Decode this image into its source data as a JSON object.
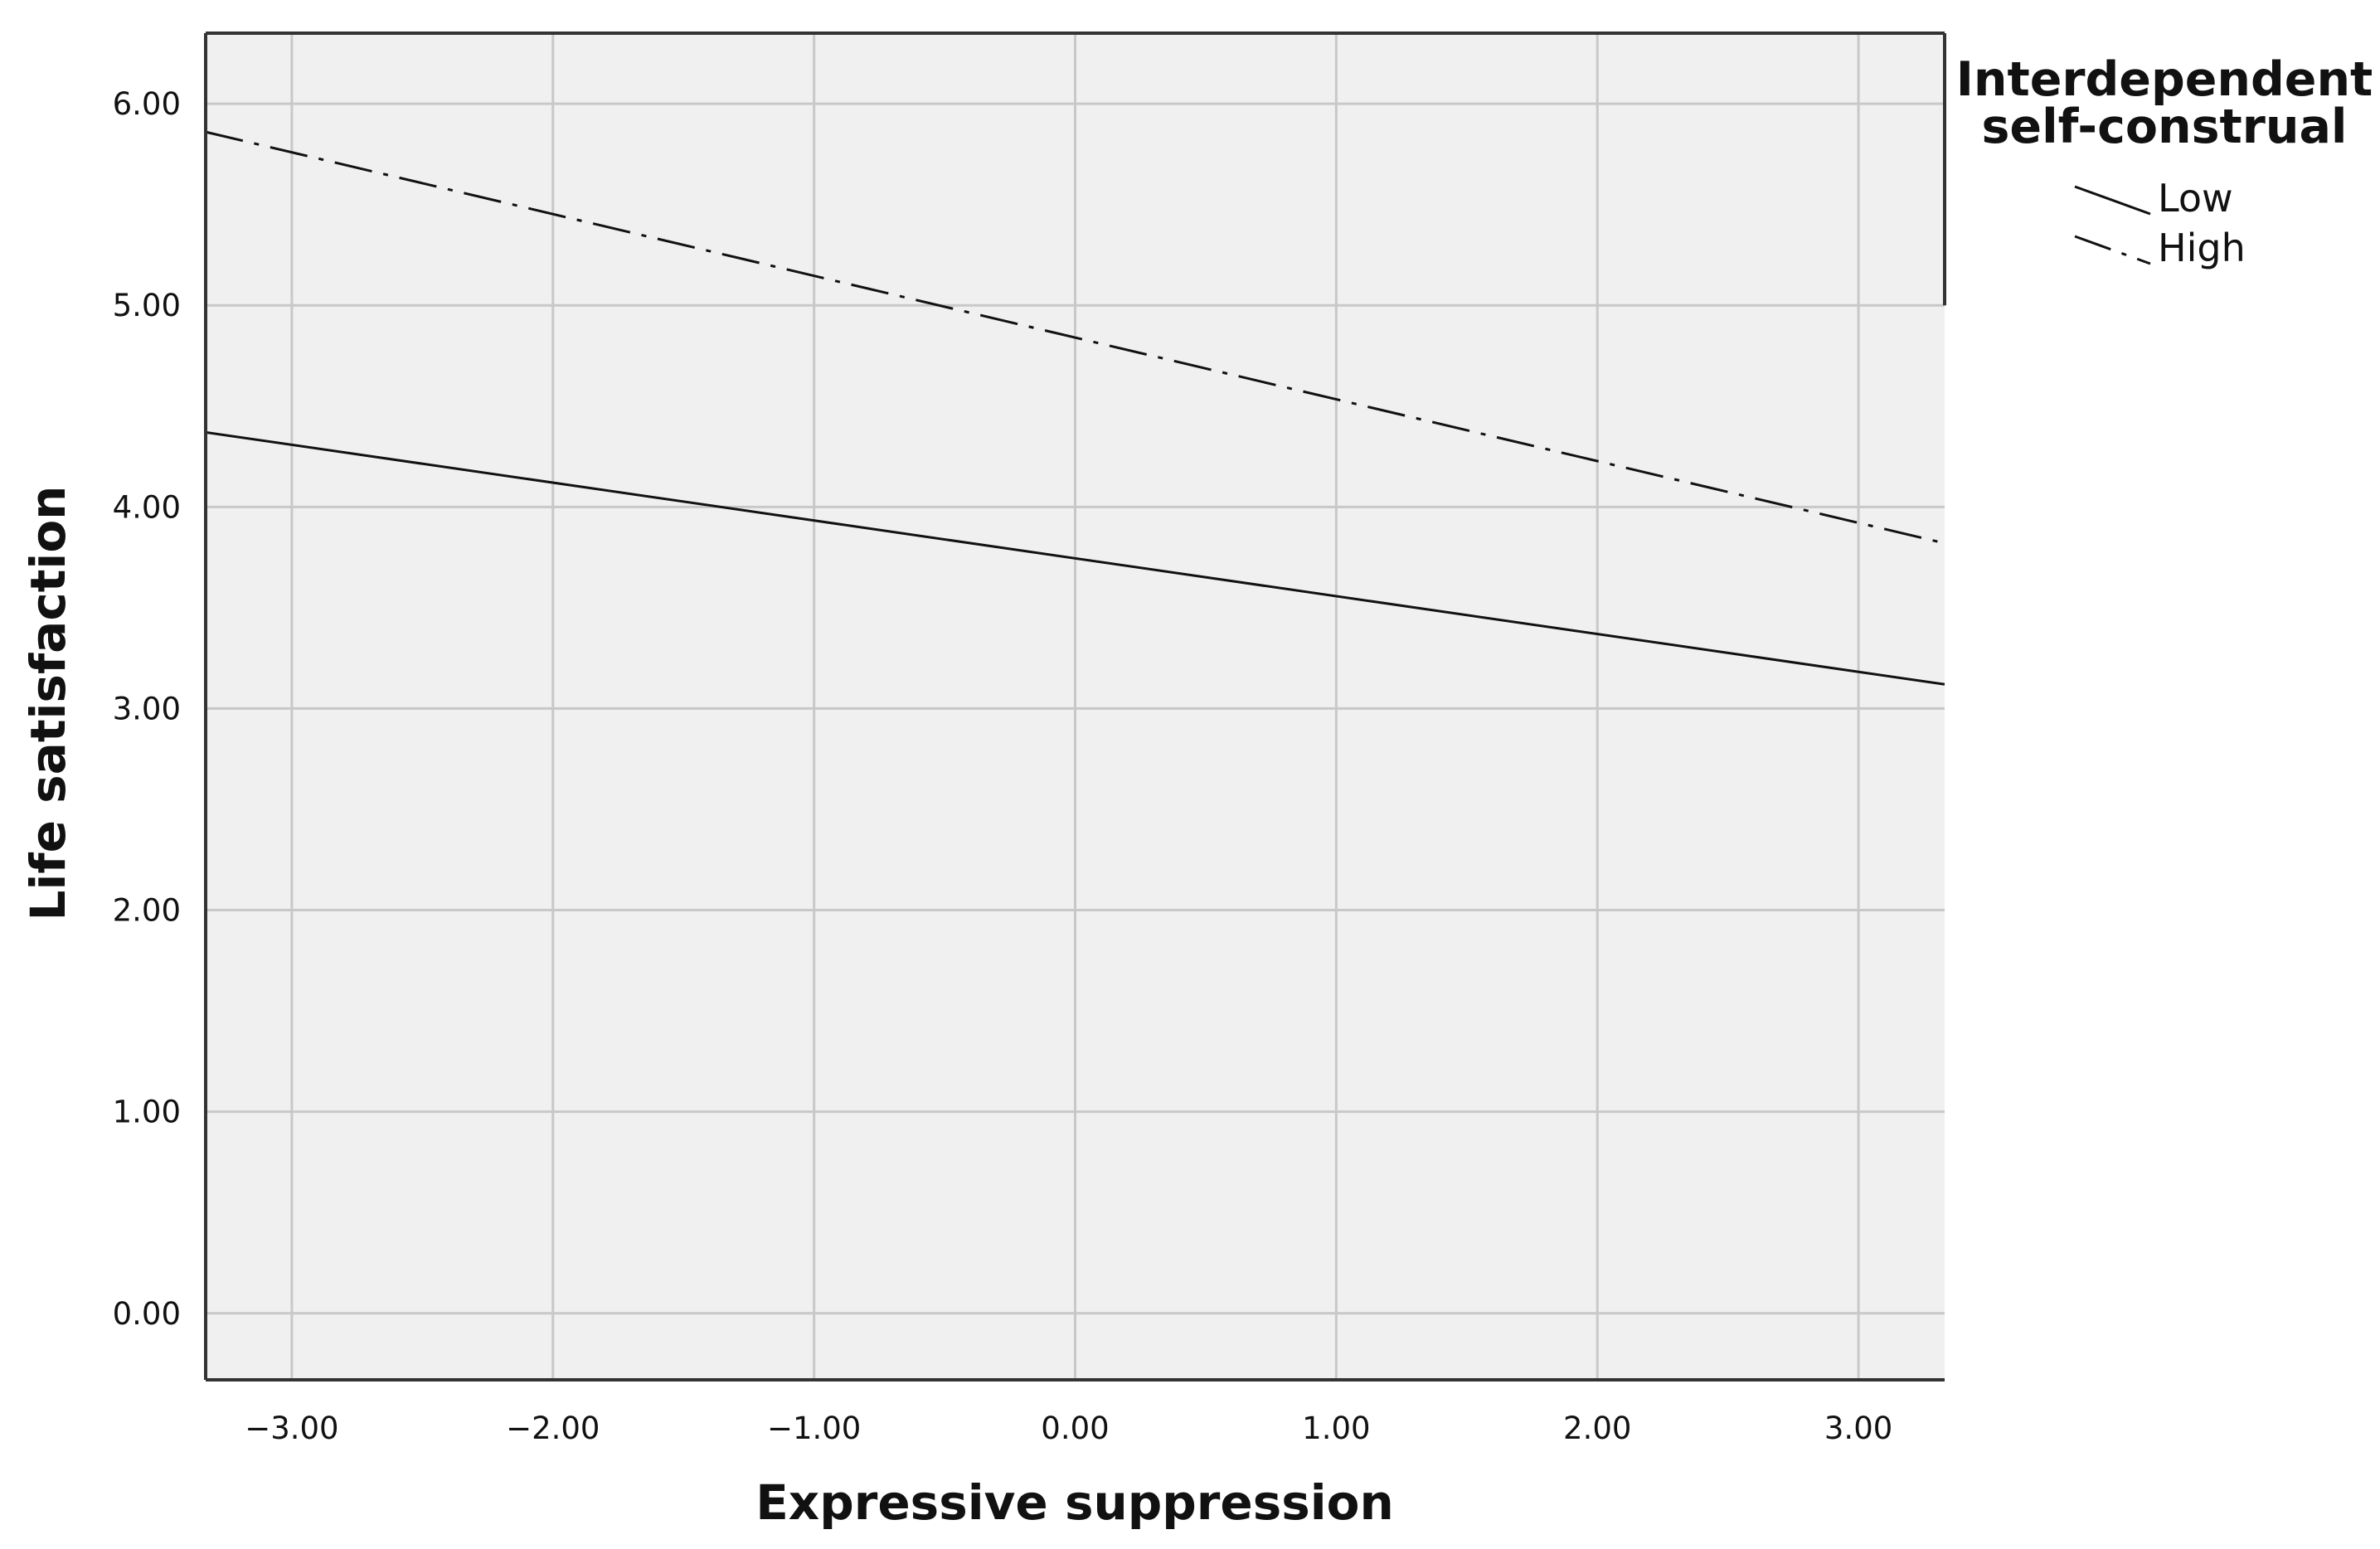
{
  "chart_data": {
    "type": "line",
    "xlabel": "Expressive suppression",
    "ylabel": "Life satisfaction",
    "xlim": [
      -3.33,
      3.33
    ],
    "ylim": [
      -0.33,
      6.35
    ],
    "xticks": [
      -3,
      -2,
      -1,
      0,
      1,
      2,
      3
    ],
    "yticks": [
      0,
      1,
      2,
      3,
      4,
      5,
      6
    ],
    "xtick_labels": [
      "−3.00",
      "−2.00",
      "−1.00",
      "0.00",
      "1.00",
      "2.00",
      "3.00"
    ],
    "ytick_labels": [
      "0.00",
      "1.00",
      "2.00",
      "3.00",
      "4.00",
      "5.00",
      "6.00"
    ],
    "grid": true,
    "legend": {
      "title_line1": "Interdependent",
      "title_line2": "self-construal",
      "placement": "right-top"
    },
    "series": [
      {
        "name": "Low",
        "style": "solid",
        "x": [
          -3.33,
          3.33
        ],
        "y": [
          4.37,
          3.12
        ]
      },
      {
        "name": "High",
        "style": "dash-dot",
        "x": [
          -3.33,
          3.33
        ],
        "y": [
          5.86,
          3.82
        ]
      }
    ],
    "colors": {
      "plot_background": "#f0f0f0",
      "grid": "#c8c8c8",
      "line": "#111111",
      "frame": "#333333"
    }
  }
}
